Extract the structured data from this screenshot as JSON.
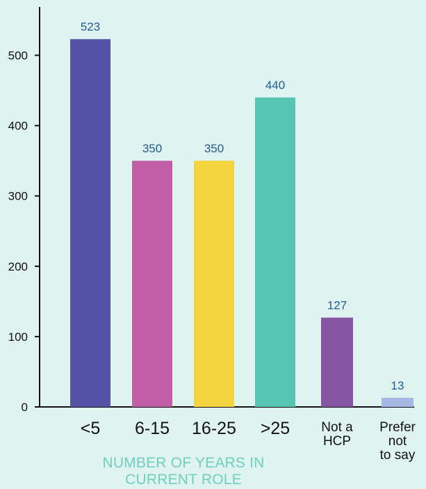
{
  "chart_data": {
    "type": "bar",
    "title": "",
    "xlabel": [
      "NUMBER OF YEARS IN",
      "CURRENT ROLE"
    ],
    "ylabel": "",
    "ylim": [
      0,
      550
    ],
    "yticks": [
      0,
      100,
      200,
      300,
      400,
      500
    ],
    "categories": [
      [
        "<5"
      ],
      [
        "6-15"
      ],
      [
        "16-25"
      ],
      [
        ">25"
      ],
      [
        "Not a",
        "HCP"
      ],
      [
        "Prefer",
        "not",
        "to say"
      ]
    ],
    "values": [
      523,
      350,
      350,
      440,
      127,
      13
    ],
    "colors": [
      "#5653a7",
      "#c05da4",
      "#f4d43e",
      "#55c4b1",
      "#8556a2",
      "#a7b8e3"
    ],
    "value_label_color": "#1f5c95",
    "axis_label_color": "#6fd0bd",
    "grid": false,
    "legend": "none"
  }
}
